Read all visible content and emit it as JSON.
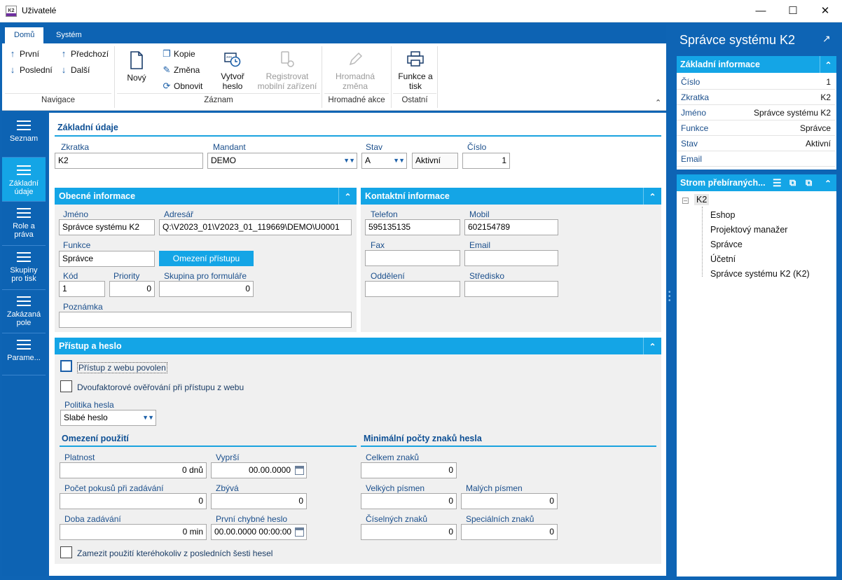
{
  "window": {
    "title": "Uživatelé",
    "app_icon_text": "K2"
  },
  "ribbon": {
    "tabs": [
      "Domů",
      "Systém"
    ],
    "navigace": {
      "first": "První",
      "last": "Poslední",
      "prev": "Předchozí",
      "next": "Další",
      "label": "Navigace"
    },
    "zaznam": {
      "new": "Nový",
      "copy": "Kopie",
      "change": "Změna",
      "refresh": "Obnovit",
      "create_pwd": [
        "Vytvoř",
        "heslo"
      ],
      "register": [
        "Registrovat",
        "mobilní zařízení"
      ],
      "label": "Záznam"
    },
    "hromadne": {
      "change": [
        "Hromadná",
        "změna"
      ],
      "label": "Hromadné akce"
    },
    "ostatni": {
      "print": [
        "Funkce a",
        "tisk"
      ],
      "label": "Ostatní"
    }
  },
  "nav": [
    {
      "label": "Seznam"
    },
    {
      "label": "Základní údaje"
    },
    {
      "label": "Role a práva"
    },
    {
      "label": "Skupiny pro tisk"
    },
    {
      "label": "Zakázaná pole"
    },
    {
      "label": "Parame..."
    }
  ],
  "zakladni": {
    "title": "Základní údaje",
    "zkratka": {
      "label": "Zkratka",
      "value": "K2"
    },
    "mandant": {
      "label": "Mandant",
      "value": "DEMO"
    },
    "stav": {
      "label": "Stav",
      "code": "A",
      "value": "Aktivní"
    },
    "cislo": {
      "label": "Číslo",
      "value": "1"
    }
  },
  "obecne": {
    "title": "Obecné informace",
    "jmeno": {
      "label": "Jméno",
      "value": "Správce systému K2"
    },
    "adresar": {
      "label": "Adresář",
      "value": "Q:\\V2023_01\\V2023_01_119669\\DEMO\\U0001"
    },
    "funkce": {
      "label": "Funkce",
      "value": "Správce"
    },
    "omezeni_btn": "Omezení přístupu",
    "kod": {
      "label": "Kód",
      "value": "1"
    },
    "priority": {
      "label": "Priority",
      "value": "0"
    },
    "skupina": {
      "label": "Skupina pro formuláře",
      "value": "0"
    },
    "poznamka": {
      "label": "Poznámka",
      "value": ""
    }
  },
  "kontakt": {
    "title": "Kontaktní informace",
    "telefon": {
      "label": "Telefon",
      "value": "595135135"
    },
    "mobil": {
      "label": "Mobil",
      "value": "602154789"
    },
    "fax": {
      "label": "Fax",
      "value": ""
    },
    "email": {
      "label": "Email",
      "value": ""
    },
    "oddeleni": {
      "label": "Oddělení",
      "value": ""
    },
    "stredisko": {
      "label": "Středisko",
      "value": ""
    }
  },
  "pristup": {
    "title": "Přístup a heslo",
    "web": "Přístup z webu povolen",
    "twofa": "Dvoufaktorové ověřování při přístupu z webu",
    "politika": {
      "label": "Politika hesla",
      "value": "Slabé heslo"
    },
    "omezeni_title": "Omezení použití",
    "platnost": {
      "label": "Platnost",
      "value": "0 dnů"
    },
    "vyprsi": {
      "label": "Vyprší",
      "value": "00.00.0000"
    },
    "pokusy": {
      "label": "Počet pokusů při zadávání",
      "value": "0"
    },
    "zbyva": {
      "label": "Zbývá",
      "value": "0"
    },
    "doba": {
      "label": "Doba zadávání",
      "value": "0 min"
    },
    "prvni": {
      "label": "První chybné heslo",
      "value": "00.00.0000 00:00:00"
    },
    "zamezit": "Zamezit použití kteréhokoliv z posledních šesti hesel",
    "minimalni_title": "Minimální počty znaků hesla",
    "celkem": {
      "label": "Celkem znaků",
      "value": "0"
    },
    "velkych": {
      "label": "Velkých písmen",
      "value": "0"
    },
    "malych": {
      "label": "Malých písmen",
      "value": "0"
    },
    "ciselnych": {
      "label": "Číselných znaků",
      "value": "0"
    },
    "specialnich": {
      "label": "Speciálních znaků",
      "value": "0"
    }
  },
  "right": {
    "title": "Správce systému K2",
    "basic_title": "Základní informace",
    "rows": [
      {
        "k": "Číslo",
        "v": "1"
      },
      {
        "k": "Zkratka",
        "v": "K2"
      },
      {
        "k": "Jméno",
        "v": "Správce systému K2"
      },
      {
        "k": "Funkce",
        "v": "Správce"
      },
      {
        "k": "Stav",
        "v": "Aktivní"
      },
      {
        "k": "Email",
        "v": ""
      }
    ],
    "tree_title": "Strom přebíraných...",
    "tree_root": "K2",
    "tree_children": [
      "Eshop",
      "Projektový manažer",
      "Správce",
      "Účetní",
      "Správce systému K2 (K2)"
    ]
  },
  "colors": {
    "accent": "#14a5e6",
    "frame": "#0e64b4",
    "label": "#1b4f8c"
  }
}
